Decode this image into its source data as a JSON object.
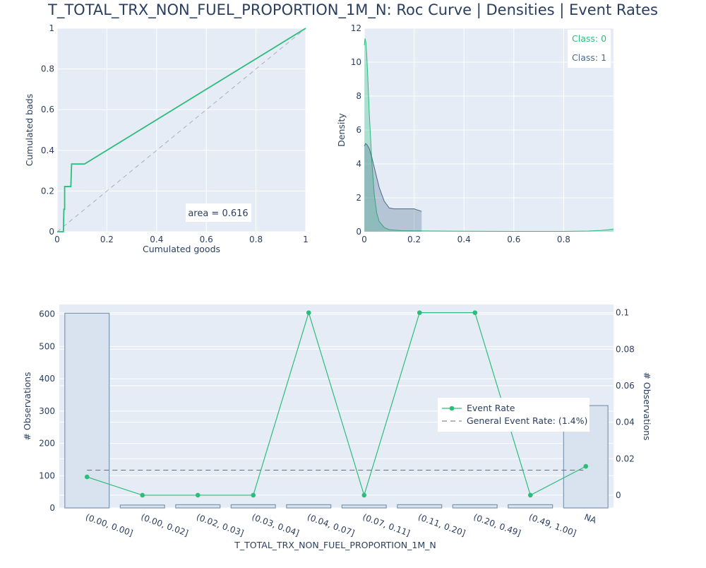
{
  "title": "T_TOTAL_TRX_NON_FUEL_PROPORTION_1M_N: Roc Curve | Densities | Event Rates",
  "colors": {
    "class0": "#2dbd7a",
    "class1": "#4a6b8a",
    "plot_bg": "#e5ecf6",
    "text": "#2a3f5f",
    "bar_fill": "#d9e2ef",
    "bar_edge": "#7b96b0"
  },
  "chart_data": [
    {
      "type": "line",
      "name": "roc",
      "xlabel": "Cumulated goods",
      "ylabel": "Cumulated bads",
      "xlim": [
        0,
        1
      ],
      "ylim": [
        0,
        1
      ],
      "xticks": [
        "0",
        "0.2",
        "0.4",
        "0.6",
        "0.8",
        "1"
      ],
      "yticks": [
        "0",
        "0.2",
        "0.4",
        "0.6",
        "0.8",
        "1"
      ],
      "annotation": "area = 0.616",
      "x": [
        0,
        0.025,
        0.027,
        0.03,
        0.03,
        0.055,
        0.058,
        0.06,
        0.11,
        1
      ],
      "y": [
        0,
        0,
        0.11,
        0.11,
        0.222,
        0.222,
        0.333,
        0.333,
        0.333,
        1
      ],
      "diagonal": true
    },
    {
      "type": "area",
      "name": "densities",
      "ylabel": "Density",
      "xlim": [
        0,
        1
      ],
      "ylim": [
        0,
        12
      ],
      "xticks": [
        "0",
        "0.2",
        "0.4",
        "0.6",
        "0.8"
      ],
      "yticks": [
        "0",
        "2",
        "4",
        "6",
        "8",
        "10",
        "12"
      ],
      "series": [
        {
          "name": "Class: 0",
          "x": [
            0,
            0.003,
            0.006,
            0.01,
            0.015,
            0.02,
            0.03,
            0.04,
            0.05,
            0.06,
            0.08,
            0.1,
            0.15,
            0.2,
            0.4,
            0.6,
            0.8,
            0.9,
            0.95,
            0.98,
            1.0
          ],
          "y": [
            11.0,
            11.4,
            11.2,
            10.4,
            8.8,
            7.0,
            4.2,
            2.2,
            1.1,
            0.6,
            0.25,
            0.12,
            0.06,
            0.05,
            0.03,
            0.02,
            0.02,
            0.04,
            0.08,
            0.12,
            0.16
          ]
        },
        {
          "name": "Class: 1",
          "x": [
            0,
            0.005,
            0.01,
            0.02,
            0.03,
            0.04,
            0.05,
            0.06,
            0.08,
            0.1,
            0.12,
            0.15,
            0.18,
            0.2,
            0.21,
            0.23
          ],
          "y": [
            5.05,
            5.2,
            5.15,
            4.9,
            4.4,
            3.8,
            3.2,
            2.6,
            1.8,
            1.4,
            1.35,
            1.35,
            1.35,
            1.35,
            1.3,
            1.2
          ]
        }
      ]
    },
    {
      "type": "bar",
      "name": "event_rates",
      "xlabel": "T_TOTAL_TRX_NON_FUEL_PROPORTION_1M_N",
      "ylabel_left": "# Observations",
      "ylabel_right": "# Observations",
      "categories": [
        "(0.00, 0.00]",
        "(0.00, 0.02]",
        "(0.02, 0.03]",
        "(0.03, 0.04]",
        "(0.04, 0.07]",
        "(0.07, 0.11]",
        "(0.11, 0.20]",
        "(0.20, 0.49]",
        "(0.49, 1.00]",
        "NA"
      ],
      "observations": [
        603,
        9,
        10,
        10,
        10,
        9,
        10,
        10,
        10,
        317
      ],
      "event_rate": [
        0.01,
        0,
        0,
        0,
        0.1,
        0,
        0.1,
        0.1,
        0,
        0.0158
      ],
      "general_event_rate": 0.0137,
      "ylim_left": [
        0,
        630
      ],
      "ylim_right": [
        -0.007,
        0.1045
      ],
      "yticks_left": [
        "0",
        "100",
        "200",
        "300",
        "400",
        "500",
        "600"
      ],
      "yticks_right": [
        "0",
        "0.02",
        "0.04",
        "0.06",
        "0.08",
        "0.1"
      ],
      "legend": [
        "Event Rate",
        "General Event Rate: (1.4%)"
      ]
    }
  ]
}
